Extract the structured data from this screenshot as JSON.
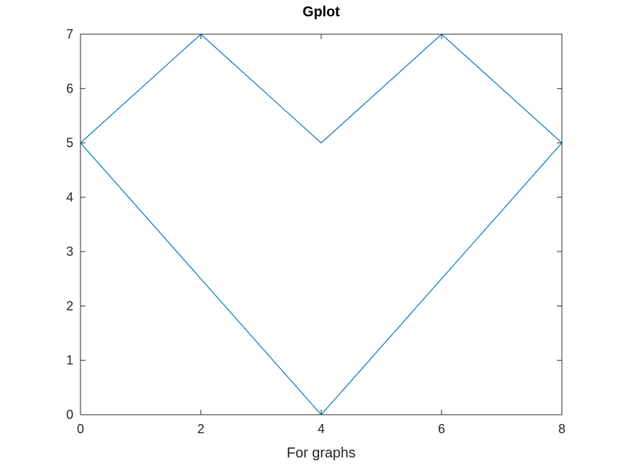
{
  "chart_data": {
    "type": "line",
    "title": "Gplot",
    "xlabel": "For graphs",
    "ylabel": "",
    "xlim": [
      0,
      8
    ],
    "ylim": [
      0,
      7
    ],
    "xticks": [
      0,
      2,
      4,
      6,
      8
    ],
    "yticks": [
      0,
      1,
      2,
      3,
      4,
      5,
      6,
      7
    ],
    "grid": false,
    "series": [
      {
        "x": [
          0,
          2,
          4,
          6,
          8,
          4,
          0
        ],
        "y": [
          5,
          7,
          5,
          7,
          5,
          0,
          5
        ],
        "color": "#0072BD"
      }
    ]
  }
}
